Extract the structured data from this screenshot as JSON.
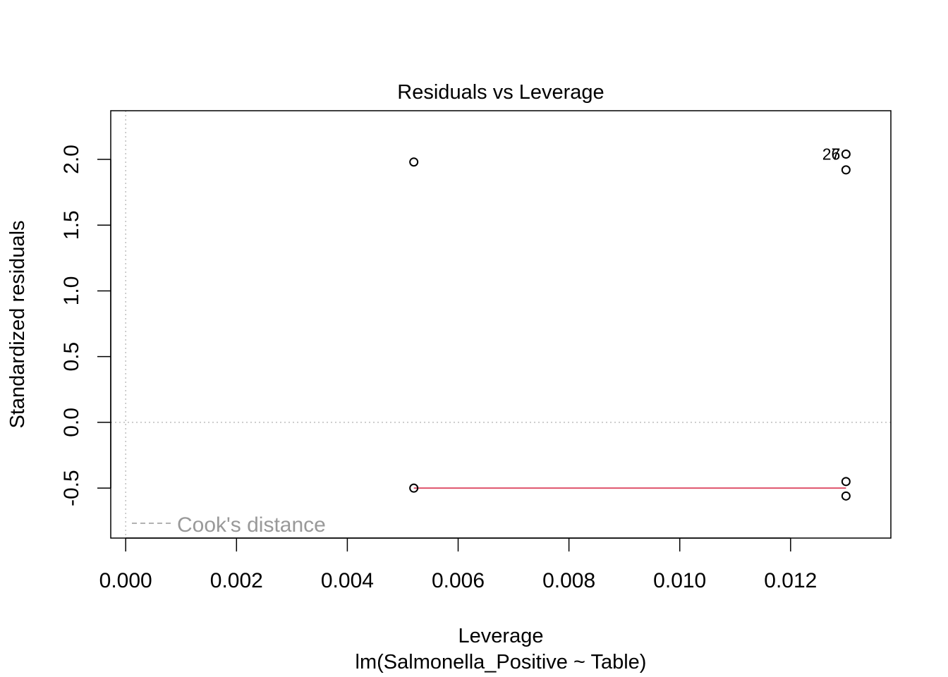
{
  "chart_data": {
    "type": "scatter",
    "title": "Residuals vs Leverage",
    "xlabel": "Leverage",
    "subtitle": "lm(Salmonella_Positive ~ Table)",
    "ylabel": "Standardized residuals",
    "xlim": [
      -0.00027,
      0.01381
    ],
    "ylim": [
      -0.88,
      2.37
    ],
    "x_ticks": [
      0.0,
      0.002,
      0.004,
      0.006,
      0.008,
      0.01,
      0.012
    ],
    "x_tick_labels": [
      "0.000",
      "0.002",
      "0.004",
      "0.006",
      "0.008",
      "0.010",
      "0.012"
    ],
    "y_ticks": [
      -0.5,
      0.0,
      0.5,
      1.0,
      1.5,
      2.0
    ],
    "y_tick_labels": [
      "-0.5",
      "0.0",
      "0.5",
      "1.0",
      "1.5",
      "2.0"
    ],
    "points": [
      {
        "x": 0.0052,
        "y": 1.98
      },
      {
        "x": 0.0052,
        "y": -0.5
      },
      {
        "x": 0.013,
        "y": 2.04
      },
      {
        "x": 0.013,
        "y": 1.92
      },
      {
        "x": 0.013,
        "y": -0.45
      },
      {
        "x": 0.013,
        "y": -0.56
      }
    ],
    "point_labels": [
      {
        "text": "26",
        "x": 0.013,
        "y": 2.04
      },
      {
        "text": "7",
        "x": 0.013,
        "y": 2.04
      }
    ],
    "smoother": {
      "color": "#DF536B",
      "x": [
        0.0052,
        0.013
      ],
      "y": [
        -0.5,
        -0.5
      ]
    },
    "reference_lines": {
      "h": 0,
      "v": 0,
      "color": "#BEBEBE"
    },
    "legend": {
      "position": "bottom-left",
      "text": "Cook's distance",
      "color": "#999999"
    },
    "grid": false
  }
}
